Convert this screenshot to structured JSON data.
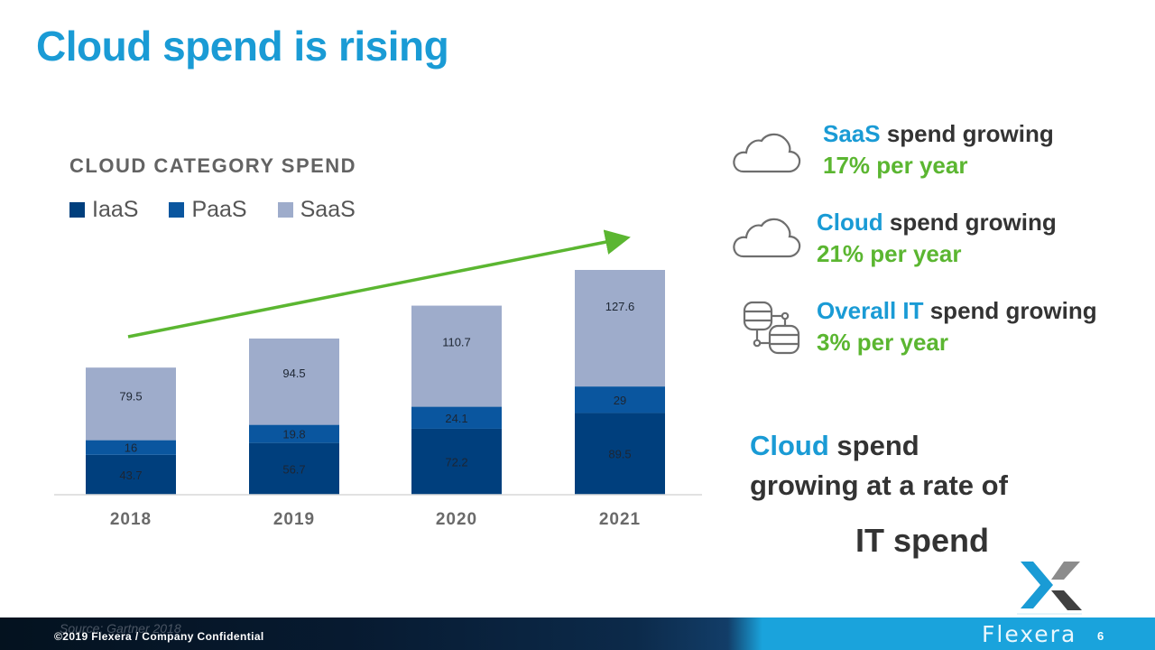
{
  "slide": {
    "title": "Cloud spend is rising",
    "source": "Source: Gartner 2018",
    "footer_copyright": "©2019 Flexera / Company Confidential",
    "footer_brand": "Flexera",
    "logo_text": "Flexera",
    "page_number": "6"
  },
  "colors": {
    "accent_blue": "#1a9bd5",
    "accent_green": "#5bb631",
    "iaas": "#003f7d",
    "paas": "#0a569f",
    "saas": "#9eaccb"
  },
  "stats": [
    {
      "icon": "cloud-icon",
      "highlight": "SaaS",
      "rest": " spend growing",
      "rate": "17% per year"
    },
    {
      "icon": "cloud-icon",
      "highlight": "Cloud",
      "rest": " spend growing",
      "rate": "21% per year"
    },
    {
      "icon": "database-network-icon",
      "highlight": "Overall IT",
      "rest": " spend growing",
      "rate": "3% per year"
    }
  ],
  "summary": {
    "highlight": "Cloud",
    "line1_rest": " spend",
    "line2": "growing at a rate of",
    "line3": "IT spend"
  },
  "chart_data": {
    "type": "bar",
    "stacked": true,
    "title": "CLOUD CATEGORY SPEND",
    "categories": [
      "2018",
      "2019",
      "2020",
      "2021"
    ],
    "series": [
      {
        "name": "IaaS",
        "color": "#003f7d",
        "values": [
          43.7,
          56.7,
          72.2,
          89.5
        ]
      },
      {
        "name": "PaaS",
        "color": "#0a569f",
        "values": [
          16,
          19.8,
          24.1,
          29
        ]
      },
      {
        "name": "SaaS",
        "color": "#9eaccb",
        "values": [
          79.5,
          94.5,
          110.7,
          127.6
        ]
      }
    ],
    "xlabel": "",
    "ylabel": "",
    "ylim": [
      0,
      250
    ],
    "grid": false,
    "legend_position": "top-left",
    "annotations": [
      {
        "type": "trend-arrow",
        "color": "#5bb631",
        "direction": "upward"
      }
    ]
  }
}
